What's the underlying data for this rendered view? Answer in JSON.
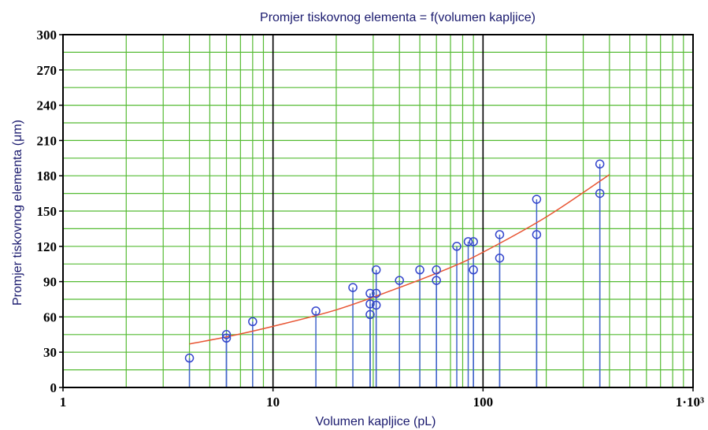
{
  "chart_data": {
    "type": "scatter",
    "title": "Promjer tiskovnog elementa = f(volumen kapljice)",
    "xlabel": "Volumen kapljice (pL)",
    "ylabel": "Promjer tiskovnog elementa (μm)",
    "x_scale": "log",
    "xlim": [
      1,
      1000
    ],
    "ylim": [
      0,
      300
    ],
    "x_ticks": [
      1,
      10,
      100,
      1000
    ],
    "x_tick_labels": [
      "1",
      "10",
      "100",
      "1·10³"
    ],
    "y_ticks": [
      0,
      30,
      60,
      90,
      120,
      150,
      180,
      210,
      240,
      270,
      300
    ],
    "y_tick_labels": [
      "0",
      "30",
      "60",
      "90",
      "120",
      "150",
      "180",
      "210",
      "240",
      "270",
      "300"
    ],
    "grid": true,
    "colors": {
      "minor_grid": "#55bb33",
      "major_grid": "#000000",
      "stems": "#4466cc",
      "markers": "#3344cc",
      "fit": "#e85533",
      "text": "#1a1a6e"
    },
    "series": [
      {
        "style": "stem-markers",
        "points": [
          {
            "x": 4,
            "y": 25
          },
          {
            "x": 6,
            "y": 42
          },
          {
            "x": 6,
            "y": 45
          },
          {
            "x": 8,
            "y": 56
          },
          {
            "x": 16,
            "y": 65
          },
          {
            "x": 24,
            "y": 85
          },
          {
            "x": 29,
            "y": 62
          },
          {
            "x": 29,
            "y": 71
          },
          {
            "x": 29,
            "y": 80
          },
          {
            "x": 31,
            "y": 70
          },
          {
            "x": 31,
            "y": 80
          },
          {
            "x": 31,
            "y": 100
          },
          {
            "x": 40,
            "y": 91
          },
          {
            "x": 50,
            "y": 100
          },
          {
            "x": 60,
            "y": 91
          },
          {
            "x": 60,
            "y": 100
          },
          {
            "x": 75,
            "y": 120
          },
          {
            "x": 85,
            "y": 124
          },
          {
            "x": 90,
            "y": 100
          },
          {
            "x": 90,
            "y": 124
          },
          {
            "x": 120,
            "y": 110
          },
          {
            "x": 120,
            "y": 130
          },
          {
            "x": 180,
            "y": 130
          },
          {
            "x": 180,
            "y": 160
          },
          {
            "x": 360,
            "y": 165
          },
          {
            "x": 360,
            "y": 190
          }
        ]
      },
      {
        "style": "fit-line",
        "points": [
          {
            "x": 4,
            "y": 37
          },
          {
            "x": 6,
            "y": 43
          },
          {
            "x": 10,
            "y": 52
          },
          {
            "x": 20,
            "y": 66
          },
          {
            "x": 40,
            "y": 85
          },
          {
            "x": 70,
            "y": 102
          },
          {
            "x": 100,
            "y": 115
          },
          {
            "x": 200,
            "y": 145
          },
          {
            "x": 400,
            "y": 181
          }
        ]
      }
    ]
  }
}
